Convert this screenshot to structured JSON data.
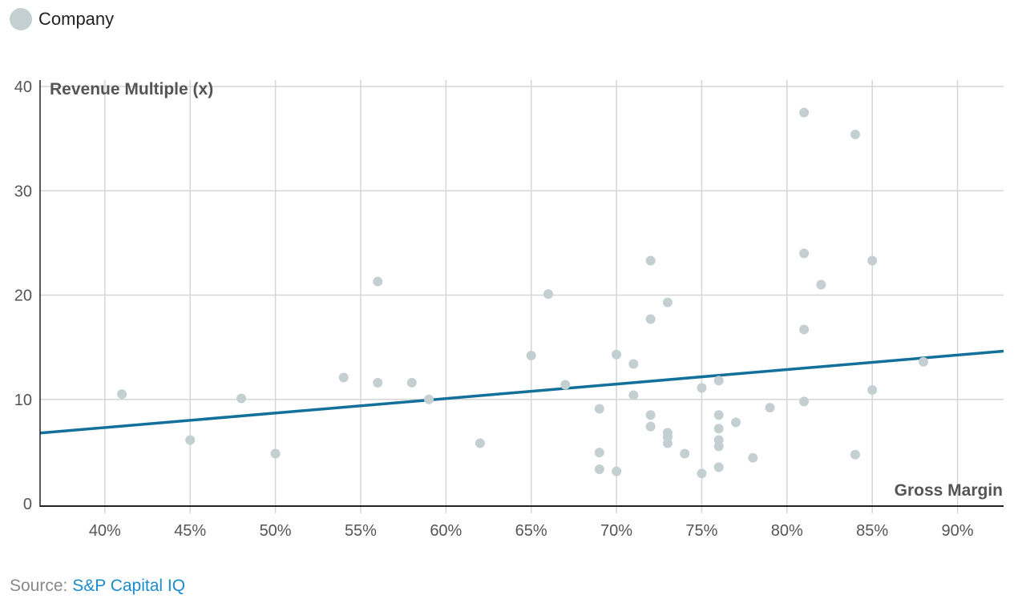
{
  "chart_data": {
    "type": "scatter",
    "legend": {
      "entries": [
        "Company"
      ],
      "placement": "top-left"
    },
    "xlabel": "Gross Margin",
    "ylabel": "Revenue Multiple (x)",
    "xlim": [
      36.2,
      92.7
    ],
    "ylim": [
      0,
      40
    ],
    "x_ticks": [
      40,
      45,
      50,
      55,
      60,
      65,
      70,
      75,
      80,
      85,
      90
    ],
    "x_tick_labels": [
      "40%",
      "45%",
      "50%",
      "55%",
      "60%",
      "65%",
      "70%",
      "75%",
      "80%",
      "85%",
      "90%"
    ],
    "y_ticks": [
      0,
      10,
      20,
      30,
      40
    ],
    "y_tick_labels": [
      "0",
      "10",
      "20",
      "30",
      "40"
    ],
    "grid": true,
    "colors": {
      "points": "#c3cfd0",
      "trendline": "#12709a",
      "grid": "#d6d6d6",
      "axis": "#222222"
    },
    "series": [
      {
        "name": "Company",
        "points": [
          [
            41,
            10.5
          ],
          [
            45,
            6.1
          ],
          [
            48,
            10.1
          ],
          [
            50,
            4.8
          ],
          [
            54,
            12.1
          ],
          [
            56,
            21.3
          ],
          [
            56,
            11.6
          ],
          [
            58,
            11.6
          ],
          [
            59,
            10.0
          ],
          [
            62,
            5.8
          ],
          [
            65,
            14.2
          ],
          [
            66,
            20.1
          ],
          [
            67,
            11.4
          ],
          [
            69,
            9.1
          ],
          [
            69,
            4.9
          ],
          [
            69,
            3.3
          ],
          [
            70,
            14.3
          ],
          [
            70,
            3.1
          ],
          [
            71,
            13.4
          ],
          [
            71,
            10.4
          ],
          [
            72,
            23.3
          ],
          [
            72,
            17.7
          ],
          [
            72,
            8.5
          ],
          [
            72,
            7.4
          ],
          [
            73,
            19.3
          ],
          [
            73,
            6.8
          ],
          [
            73,
            6.4
          ],
          [
            73,
            5.8
          ],
          [
            74,
            4.8
          ],
          [
            75,
            11.1
          ],
          [
            75,
            2.9
          ],
          [
            76,
            11.8
          ],
          [
            76,
            8.5
          ],
          [
            76,
            7.2
          ],
          [
            76,
            6.1
          ],
          [
            76,
            5.5
          ],
          [
            76,
            3.5
          ],
          [
            77,
            7.8
          ],
          [
            78,
            4.4
          ],
          [
            79,
            9.2
          ],
          [
            81,
            37.5
          ],
          [
            81,
            24.0
          ],
          [
            81,
            16.7
          ],
          [
            81,
            9.8
          ],
          [
            82,
            21.0
          ],
          [
            84,
            35.4
          ],
          [
            84,
            4.7
          ],
          [
            85,
            23.3
          ],
          [
            85,
            10.9
          ],
          [
            88,
            13.6
          ]
        ]
      }
    ],
    "trendline": {
      "slope": 0.139,
      "intercept": 1.74
    }
  },
  "source": {
    "label": "Source:",
    "link": "S&P Capital IQ"
  }
}
